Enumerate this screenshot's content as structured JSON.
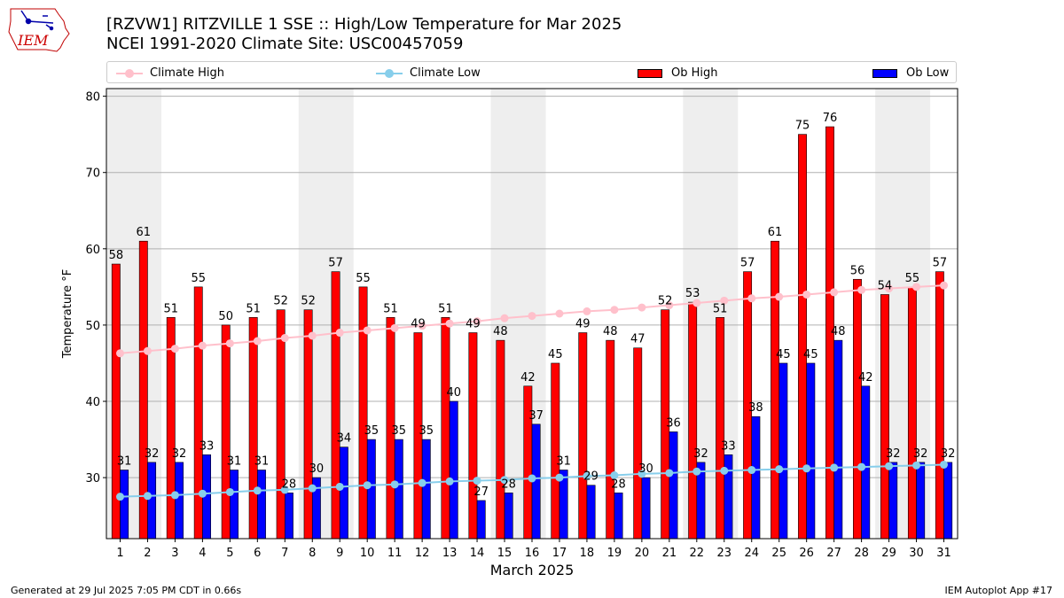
{
  "header": {
    "title_line1": "[RZVW1] RITZVILLE 1 SSE :: High/Low Temperature for Mar 2025",
    "title_line2": "NCEI 1991-2020 Climate Site: USC00457059",
    "logo_text": "IEM"
  },
  "legend": {
    "items": [
      {
        "label": "Climate High",
        "color": "#ffc0cb",
        "kind": "line"
      },
      {
        "label": "Climate Low",
        "color": "#87ceeb",
        "kind": "line"
      },
      {
        "label": "Ob High",
        "color": "#ff0000",
        "kind": "bar"
      },
      {
        "label": "Ob Low",
        "color": "#0000ff",
        "kind": "bar"
      }
    ]
  },
  "footer": {
    "left": "Generated at 29 Jul 2025 7:05 PM CDT in 0.66s",
    "right": "IEM Autoplot App #17"
  },
  "chart_data": {
    "type": "bar",
    "xlabel": "March 2025",
    "ylabel": "Temperature °F",
    "ylim": [
      22,
      81
    ],
    "yticks": [
      30,
      40,
      50,
      60,
      70,
      80
    ],
    "grid": "horizontal",
    "weekend_shading_days": [
      [
        1,
        2
      ],
      [
        8,
        9
      ],
      [
        15,
        16
      ],
      [
        22,
        23
      ],
      [
        29,
        30
      ]
    ],
    "categories": [
      "1",
      "2",
      "3",
      "4",
      "5",
      "6",
      "7",
      "8",
      "9",
      "10",
      "11",
      "12",
      "13",
      "14",
      "15",
      "16",
      "17",
      "18",
      "19",
      "20",
      "21",
      "22",
      "23",
      "24",
      "25",
      "26",
      "27",
      "28",
      "29",
      "30",
      "31"
    ],
    "series": [
      {
        "name": "Ob High",
        "kind": "bar",
        "color": "#ff0000",
        "values": [
          58,
          61,
          51,
          55,
          50,
          51,
          52,
          52,
          57,
          55,
          51,
          49,
          51,
          49,
          48,
          42,
          45,
          49,
          48,
          47,
          52,
          53,
          51,
          57,
          61,
          75,
          76,
          56,
          54,
          55,
          57
        ]
      },
      {
        "name": "Ob Low",
        "kind": "bar",
        "color": "#0000ff",
        "values": [
          31,
          32,
          32,
          33,
          31,
          31,
          28,
          30,
          34,
          35,
          35,
          35,
          40,
          27,
          28,
          37,
          31,
          29,
          28,
          30,
          36,
          32,
          33,
          38,
          45,
          45,
          48,
          42,
          32,
          32,
          32
        ]
      },
      {
        "name": "Climate High",
        "kind": "line",
        "color": "#ffc0cb",
        "values": [
          46.3,
          46.6,
          46.9,
          47.3,
          47.6,
          47.9,
          48.3,
          48.6,
          49.0,
          49.3,
          49.6,
          49.9,
          50.2,
          50.5,
          50.9,
          51.2,
          51.5,
          51.8,
          52.0,
          52.3,
          52.6,
          52.9,
          53.2,
          53.5,
          53.7,
          54.0,
          54.3,
          54.6,
          54.8,
          55.0,
          55.2
        ]
      },
      {
        "name": "Climate Low",
        "kind": "line",
        "color": "#87ceeb",
        "values": [
          27.5,
          27.6,
          27.7,
          27.9,
          28.1,
          28.3,
          28.4,
          28.6,
          28.8,
          29.0,
          29.1,
          29.3,
          29.5,
          29.6,
          29.7,
          29.9,
          30.0,
          30.2,
          30.3,
          30.5,
          30.6,
          30.8,
          30.9,
          31.0,
          31.1,
          31.2,
          31.3,
          31.4,
          31.5,
          31.6,
          31.7
        ]
      }
    ]
  }
}
